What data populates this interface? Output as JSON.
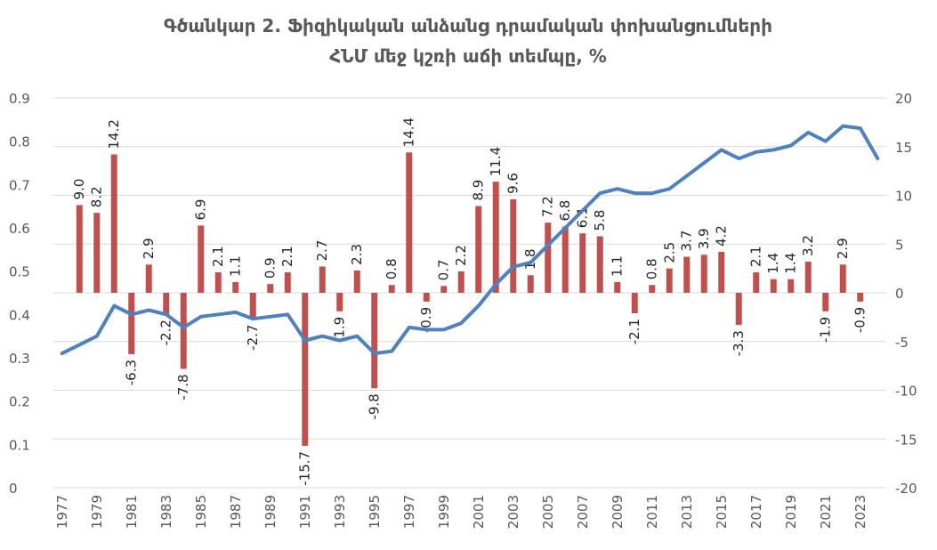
{
  "chart_data": {
    "type": "bar+line",
    "title_lines": [
      "Գծանկար 2. Ֆիզիկական անձանց դրամական փոխանցումների",
      "ՀՆՄ մեջ կշռի աճի տեմպը, %"
    ],
    "left_axis": {
      "min": 0,
      "max": 0.9,
      "ticks": [
        "0",
        "0.1",
        "0.2",
        "0.3",
        "0.4",
        "0.5",
        "0.6",
        "0.7",
        "0.8",
        "0.9"
      ]
    },
    "right_axis": {
      "min": -20,
      "max": 20,
      "ticks": [
        "-20",
        "-15",
        "-10",
        "-5",
        "0",
        "5",
        "10",
        "15",
        "20"
      ]
    },
    "x": [
      1977,
      1978,
      1979,
      1980,
      1981,
      1982,
      1983,
      1984,
      1985,
      1986,
      1987,
      1988,
      1989,
      1990,
      1991,
      1992,
      1993,
      1994,
      1995,
      1996,
      1997,
      1998,
      1999,
      2000,
      2001,
      2002,
      2003,
      2004,
      2005,
      2006,
      2007,
      2008,
      2009,
      2010,
      2011,
      2012,
      2013,
      2014,
      2015,
      2016,
      2017,
      2018,
      2019,
      2020,
      2021,
      2022,
      2023,
      2024
    ],
    "x_tick_labels": [
      "1977",
      "1979",
      "1981",
      "1983",
      "1985",
      "1987",
      "1989",
      "1991",
      "1993",
      "1995",
      "1997",
      "1999",
      "2001",
      "2003",
      "2005",
      "2007",
      "2009",
      "2011",
      "2013",
      "2015",
      "2017",
      "2019",
      "2021",
      "2023"
    ],
    "series": [
      {
        "type": "bar",
        "axis": "right",
        "color": "#C0504D",
        "values": [
          null,
          9.0,
          8.2,
          14.2,
          -6.3,
          2.9,
          -2.2,
          -7.8,
          6.9,
          2.1,
          1.1,
          -2.7,
          0.9,
          2.1,
          -15.7,
          2.7,
          -1.9,
          2.3,
          -9.8,
          0.8,
          14.4,
          -0.9,
          0.7,
          2.2,
          8.9,
          11.4,
          9.6,
          1.8,
          7.2,
          6.8,
          6.1,
          5.8,
          1.1,
          -2.1,
          0.8,
          2.5,
          3.7,
          3.9,
          4.2,
          -3.3,
          2.1,
          1.4,
          1.4,
          3.2,
          -1.9,
          2.9,
          -0.9,
          null
        ],
        "labels": [
          "",
          "9.0",
          "8.2",
          "14.2",
          "-6.3",
          "2.9",
          "-2.2",
          "-7.8",
          "6.9",
          "2.1",
          "1.1",
          "-2.7",
          "0.9",
          "2.1",
          "-15.7",
          "2.7",
          "-1.9",
          "2.3",
          "-9.8",
          "0.8",
          "14.4",
          "-0.9",
          "0.7",
          "2.2",
          "8.9",
          "11.4",
          "9.6",
          "1.8",
          "7.2",
          "6.8",
          "6.1",
          "5.8",
          "1.1",
          "-2.1",
          "0.8",
          "2.5",
          "3.7",
          "3.9",
          "4.2",
          "-3.3",
          "2.1",
          "1.4",
          "1.4",
          "3.2",
          "-1.9",
          "2.9",
          "-0.9",
          ""
        ]
      },
      {
        "type": "line",
        "axis": "left",
        "color": "#4F81BD",
        "values": [
          0.31,
          0.33,
          0.35,
          0.42,
          0.4,
          0.41,
          0.4,
          0.37,
          0.395,
          0.4,
          0.405,
          0.39,
          0.395,
          0.4,
          0.34,
          0.35,
          0.34,
          0.35,
          0.31,
          0.315,
          0.37,
          0.365,
          0.365,
          0.38,
          0.42,
          0.47,
          0.51,
          0.52,
          0.56,
          0.6,
          0.64,
          0.68,
          0.69,
          0.68,
          0.68,
          0.69,
          0.72,
          0.75,
          0.78,
          0.76,
          0.775,
          0.78,
          0.79,
          0.82,
          0.8,
          0.835,
          0.83,
          0.76
        ]
      }
    ],
    "grid": "horizontal"
  }
}
